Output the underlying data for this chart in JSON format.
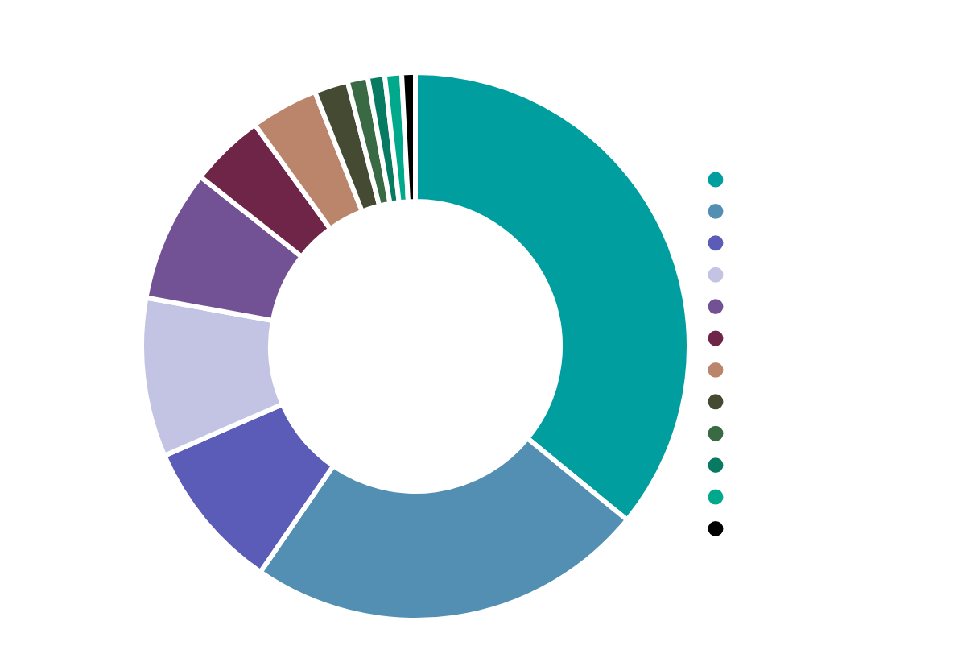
{
  "chart_data": {
    "type": "donut",
    "categories": [
      null,
      null,
      null,
      null,
      null,
      null,
      null,
      null,
      null,
      null,
      null,
      null
    ],
    "values": [
      36,
      23.7,
      8.9,
      9.4,
      7.8,
      4.4,
      4,
      2,
      1.2,
      1,
      1,
      0.8
    ],
    "colors": [
      "#009e9e",
      "#528fb3",
      "#5b5bb8",
      "#c3c3e3",
      "#725294",
      "#6e2548",
      "#bb856c",
      "#454b33",
      "#3a6a43",
      "#087a62",
      "#00a98b",
      "#000000"
    ]
  }
}
